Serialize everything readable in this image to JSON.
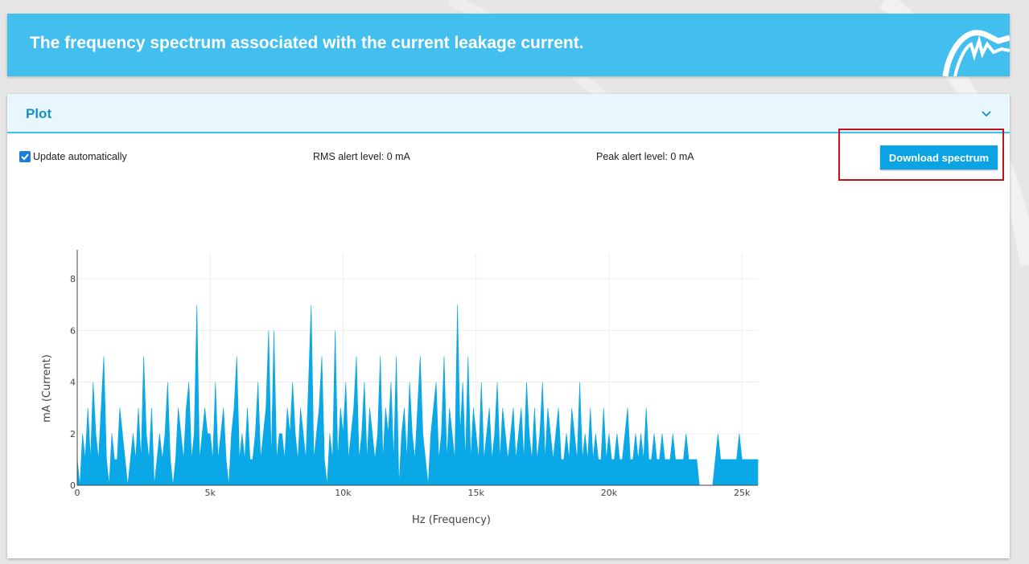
{
  "header": {
    "title": "The frequency spectrum associated with the current leakage current.",
    "logo_icon": "waveform-logo-icon"
  },
  "panel": {
    "title": "Plot",
    "collapse_icon": "chevron-down-icon",
    "auto_update_label": "Update automatically",
    "auto_update_checked": true,
    "rms_alert": "RMS alert level: 0 mA",
    "peak_alert": "Peak alert level: 0 mA",
    "download_label": "Download spectrum"
  },
  "colors": {
    "header_bg": "#43bfef",
    "accent": "#0aa3e4",
    "fill": "#0aa8e6",
    "highlight": "#c0121a"
  },
  "chart_data": {
    "type": "area",
    "title": "",
    "xlabel": "Hz (Frequency)",
    "ylabel": "mA (Current)",
    "xlim": [
      0,
      25600
    ],
    "ylim": [
      0,
      9
    ],
    "x_ticks": [
      0,
      5000,
      10000,
      15000,
      20000,
      25000
    ],
    "x_tick_labels": [
      "0",
      "5k",
      "10k",
      "15k",
      "20k",
      "25k"
    ],
    "y_ticks": [
      0,
      2,
      4,
      6,
      8
    ],
    "y_tick_labels": [
      "0",
      "2",
      "4",
      "6",
      "8"
    ],
    "grid": true,
    "x_step": 50,
    "series": [
      {
        "values": [
          1,
          0,
          2,
          1,
          3,
          1,
          4,
          2,
          1,
          3,
          5,
          1,
          0,
          2,
          1,
          1,
          3,
          2,
          1,
          0,
          1,
          2,
          1,
          3,
          1,
          5,
          2,
          1,
          3,
          0,
          1,
          2,
          1,
          2,
          4,
          1,
          0,
          1,
          3,
          2,
          1,
          3,
          4,
          1,
          2,
          7,
          1,
          2,
          3,
          2,
          2,
          1,
          4,
          1,
          2,
          3,
          1,
          0,
          2,
          3,
          5,
          1,
          2,
          1,
          3,
          1,
          1,
          2,
          4,
          1,
          2,
          3,
          6,
          1,
          6,
          1,
          2,
          2,
          1,
          3,
          2,
          4,
          2,
          1,
          3,
          2,
          1,
          4,
          7,
          1,
          2,
          3,
          5,
          1,
          0,
          2,
          1,
          6,
          1,
          3,
          2,
          4,
          1,
          2,
          3,
          5,
          1,
          2,
          4,
          1,
          3,
          2,
          1,
          2,
          5,
          1,
          3,
          2,
          4,
          1,
          5,
          0,
          2,
          3,
          1,
          4,
          2,
          1,
          3,
          5,
          2,
          1,
          0,
          2,
          3,
          4,
          1,
          2,
          5,
          1,
          3,
          2,
          1,
          7,
          2,
          4,
          1,
          5,
          1,
          3,
          2,
          1,
          4,
          1,
          2,
          3,
          1,
          2,
          4,
          1,
          3,
          2,
          1,
          2,
          3,
          1,
          2,
          3,
          1,
          4,
          2,
          1,
          3,
          1,
          2,
          4,
          1,
          3,
          2,
          1,
          2,
          3,
          1,
          1,
          2,
          1,
          3,
          2,
          1,
          4,
          1,
          2,
          1,
          3,
          1,
          2,
          1,
          1,
          3,
          1,
          2,
          1,
          1,
          2,
          1,
          1,
          2,
          3,
          1,
          1,
          2,
          1,
          2,
          1,
          3,
          1,
          1,
          2,
          1,
          1,
          2,
          1,
          1,
          1,
          2,
          1,
          1,
          1,
          1,
          2,
          1,
          1,
          1,
          1,
          0,
          0,
          0,
          0,
          0,
          0,
          1,
          2,
          1,
          1,
          1,
          1,
          1,
          1,
          1,
          2,
          1,
          1,
          1,
          1,
          1,
          1,
          1,
          1,
          1,
          1,
          1,
          1
        ]
      }
    ]
  }
}
